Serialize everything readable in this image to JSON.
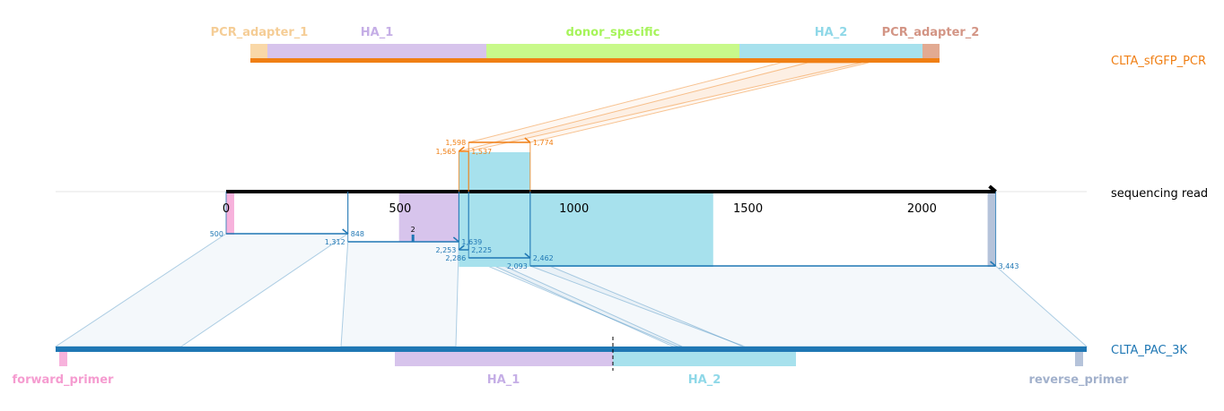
{
  "colors": {
    "pcr": "#f07f14",
    "pac": "#1f77b4",
    "read": "#000000",
    "pcr_adapter_1": "#f9d8a8",
    "ha_1": "#d7c4ec",
    "donor_specific": "#c8f98a",
    "ha_2": "#a7e1ed",
    "pcr_adapter_2": "#e2aa92",
    "forward_primer": "#f7b2dc",
    "reverse_primer": "#b5c3da",
    "pcr_label_adapter_1": "#f5cd96",
    "pcr_label_ha_1": "#c5aee6",
    "pcr_label_donor": "#a6f45a",
    "pcr_label_ha_2": "#8fd8e8",
    "pcr_label_adapter_2": "#d39585",
    "pac_label_forward": "#f59cd0",
    "pac_label_ha_1": "#c5aee6",
    "pac_label_ha_2": "#8fd8e8",
    "pac_label_reverse": "#a2b1cc"
  },
  "references": {
    "pcr": {
      "name": "CLTA_sfGFP_PCR",
      "features": [
        {
          "label": "PCR_adapter_1",
          "color_key": "pcr_label_adapter_1",
          "fill_key": "pcr_adapter_1"
        },
        {
          "label": "HA_1",
          "color_key": "pcr_label_ha_1",
          "fill_key": "ha_1"
        },
        {
          "label": "donor_specific",
          "color_key": "pcr_label_donor",
          "fill_key": "donor_specific"
        },
        {
          "label": "HA_2",
          "color_key": "pcr_label_ha_2",
          "fill_key": "ha_2"
        },
        {
          "label": "PCR_adapter_2",
          "color_key": "pcr_label_adapter_2",
          "fill_key": "pcr_adapter_2"
        }
      ]
    },
    "pac": {
      "name": "CLTA_PAC_3K",
      "features": [
        {
          "label": "forward_primer",
          "color_key": "pac_label_forward",
          "fill_key": "forward_primer"
        },
        {
          "label": "HA_1",
          "color_key": "pac_label_ha_1",
          "fill_key": "ha_1"
        },
        {
          "label": "HA_2",
          "color_key": "pac_label_ha_2",
          "fill_key": "ha_2"
        },
        {
          "label": "reverse_primer",
          "color_key": "pac_label_reverse",
          "fill_key": "reverse_primer"
        }
      ]
    }
  },
  "read": {
    "name": "sequencing read",
    "ticks": [
      {
        "value": 0,
        "label": "0"
      },
      {
        "value": 500,
        "label": "500"
      },
      {
        "value": 1000,
        "label": "1000"
      },
      {
        "value": 1500,
        "label": "1500"
      },
      {
        "value": 2000,
        "label": "2000"
      }
    ],
    "length": 2212
  },
  "alignments": {
    "pcr": [
      {
        "read_start": 697,
        "read_end": 874,
        "ref_start_label": "1,598",
        "ref_end_label": "1,774"
      },
      {
        "read_start": 669,
        "read_end": 697,
        "ref_start_label": "1,565",
        "ref_end_label": "1,537"
      }
    ],
    "pac": [
      {
        "read_start": 0,
        "read_end": 350,
        "ref_start_label": "500",
        "ref_end_label": "848"
      },
      {
        "read_start": 350,
        "read_end": 669,
        "ref_start_label": "1,312",
        "ref_end_label": "1,639"
      },
      {
        "read_start": 669,
        "read_end": 697,
        "ref_start_label": "2,253",
        "ref_end_label": "2,225"
      },
      {
        "read_start": 697,
        "read_end": 874,
        "ref_start_label": "2,286",
        "ref_end_label": "2,462"
      },
      {
        "read_start": 874,
        "read_end": 2212,
        "ref_start_label": "2,093",
        "ref_end_label": "3,443"
      }
    ],
    "indel_label": "2"
  }
}
